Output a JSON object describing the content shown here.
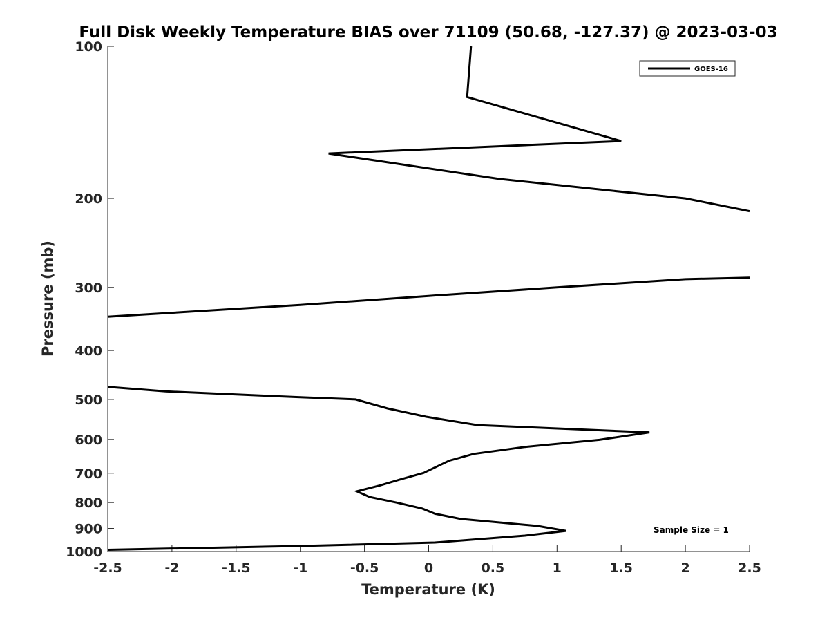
{
  "chart_data": {
    "type": "line",
    "title": "Full Disk Weekly Temperature BIAS over 71109 (50.68, -127.37) @ 2023-03-03",
    "xlabel": "Temperature (K)",
    "ylabel": "Pressure (mb)",
    "xlim": [
      -2.5,
      2.5
    ],
    "ylim": [
      100,
      1000
    ],
    "y_scale": "log",
    "y_reversed": true,
    "x_ticks": [
      "-2.5",
      "-2",
      "-1.5",
      "-1",
      "-0.5",
      "0",
      "0.5",
      "1",
      "1.5",
      "2",
      "2.5"
    ],
    "x_tick_values": [
      -2.5,
      -2,
      -1.5,
      -1,
      -0.5,
      0,
      0.5,
      1,
      1.5,
      2,
      2.5
    ],
    "y_ticks": [
      "100",
      "200",
      "300",
      "400",
      "500",
      "600",
      "700",
      "800",
      "900",
      "1000"
    ],
    "y_tick_values": [
      100,
      200,
      300,
      400,
      500,
      600,
      700,
      800,
      900,
      1000
    ],
    "grid": false,
    "legend_position": "top-right",
    "annotation": "Sample Size = 1",
    "series": [
      {
        "name": "GOES-16",
        "color": "#000000",
        "segments": [
          {
            "x": [
              0.33,
              0.3,
              1.5,
              -0.78,
              0.55,
              2.0,
              2.5
            ],
            "y": [
              100,
              126,
              154,
              163,
              183,
              200,
              212
            ]
          },
          {
            "x": [
              2.5,
              2.0,
              1.0,
              0.0,
              -1.0,
              -2.5
            ],
            "y": [
              287,
              289,
              300,
              312,
              325,
              343
            ]
          },
          {
            "x": [
              -2.5,
              -2.05,
              -1.0,
              -0.57,
              -0.32,
              -0.02,
              0.38,
              1.72,
              1.33,
              0.75,
              0.35,
              0.16,
              -0.04,
              -0.22,
              -0.38,
              -0.56,
              -0.46,
              -0.25,
              -0.05,
              0.05,
              0.25,
              0.85,
              1.07,
              0.75,
              0.05,
              -1.0,
              -2.5
            ],
            "y": [
              472,
              482,
              495,
              500,
              521,
              541,
              562,
              581,
              601,
              621,
              641,
              661,
              699,
              720,
              740,
              760,
              780,
              800,
              822,
              842,
              862,
              890,
              910,
              930,
              960,
              975,
              992
            ]
          }
        ]
      }
    ]
  }
}
